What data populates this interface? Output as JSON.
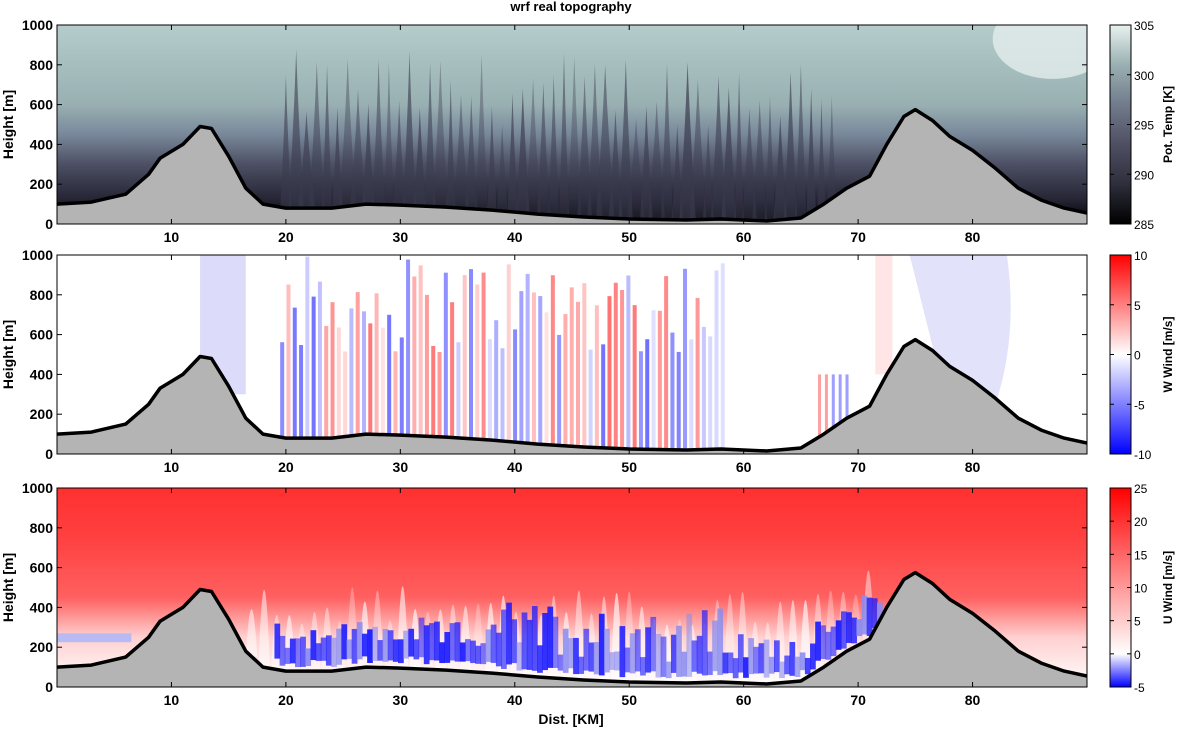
{
  "figure": {
    "title": "wrf real topography",
    "xlabel": "Dist. [KM]"
  },
  "chart_data": [
    {
      "type": "heatmap",
      "ylabel": "Height [m]",
      "colorbar_label": "Pot. Temp [K]",
      "colormap": [
        "#000000",
        "#2e2e3c",
        "#4f4f63",
        "#717b8b",
        "#9ab0b2",
        "#e8f2f0"
      ],
      "xlim": [
        0,
        90
      ],
      "ylim": [
        0,
        1000
      ],
      "xticks": [
        10,
        20,
        30,
        40,
        50,
        60,
        70,
        80
      ],
      "yticks": [
        0,
        200,
        400,
        600,
        800,
        1000
      ],
      "clim": [
        285,
        305
      ],
      "cticks": [
        285,
        290,
        295,
        300,
        305
      ]
    },
    {
      "type": "heatmap",
      "ylabel": "Height [m]",
      "colorbar_label": "W Wind [m/s]",
      "colormap": [
        "#0000ff",
        "#ffffff",
        "#ff0000"
      ],
      "xlim": [
        0,
        90
      ],
      "ylim": [
        0,
        1000
      ],
      "xticks": [
        10,
        20,
        30,
        40,
        50,
        60,
        70,
        80
      ],
      "yticks": [
        0,
        200,
        400,
        600,
        800,
        1000
      ],
      "clim": [
        -10,
        10
      ],
      "cticks": [
        -10,
        -5,
        0,
        5,
        10
      ]
    },
    {
      "type": "heatmap",
      "ylabel": "Height [m]",
      "colorbar_label": "U Wind [m/s]",
      "colormap": [
        "#0000ff",
        "#ffffff",
        "#ff0000"
      ],
      "xlim": [
        0,
        90
      ],
      "ylim": [
        0,
        1000
      ],
      "xticks": [
        10,
        20,
        30,
        40,
        50,
        60,
        70,
        80
      ],
      "yticks": [
        0,
        200,
        400,
        600,
        800,
        1000
      ],
      "clim": [
        -5,
        25
      ],
      "cticks": [
        -5,
        0,
        5,
        10,
        15,
        20,
        25
      ]
    }
  ],
  "terrain": {
    "x": [
      0,
      3,
      6,
      8,
      9,
      11,
      12.5,
      13.5,
      15,
      16.5,
      18,
      20,
      24,
      27,
      30,
      34,
      38,
      42,
      46,
      50,
      55,
      58,
      62,
      65,
      67,
      69,
      71,
      72.5,
      74,
      75,
      76.5,
      78,
      80,
      82,
      84,
      86,
      88,
      90
    ],
    "height": [
      100,
      110,
      150,
      250,
      330,
      400,
      490,
      480,
      340,
      180,
      100,
      80,
      80,
      100,
      95,
      85,
      70,
      50,
      35,
      25,
      20,
      25,
      15,
      30,
      100,
      180,
      240,
      400,
      540,
      575,
      520,
      440,
      370,
      280,
      180,
      120,
      80,
      55
    ],
    "fill": "#b4b4b4",
    "line": "#000000"
  }
}
